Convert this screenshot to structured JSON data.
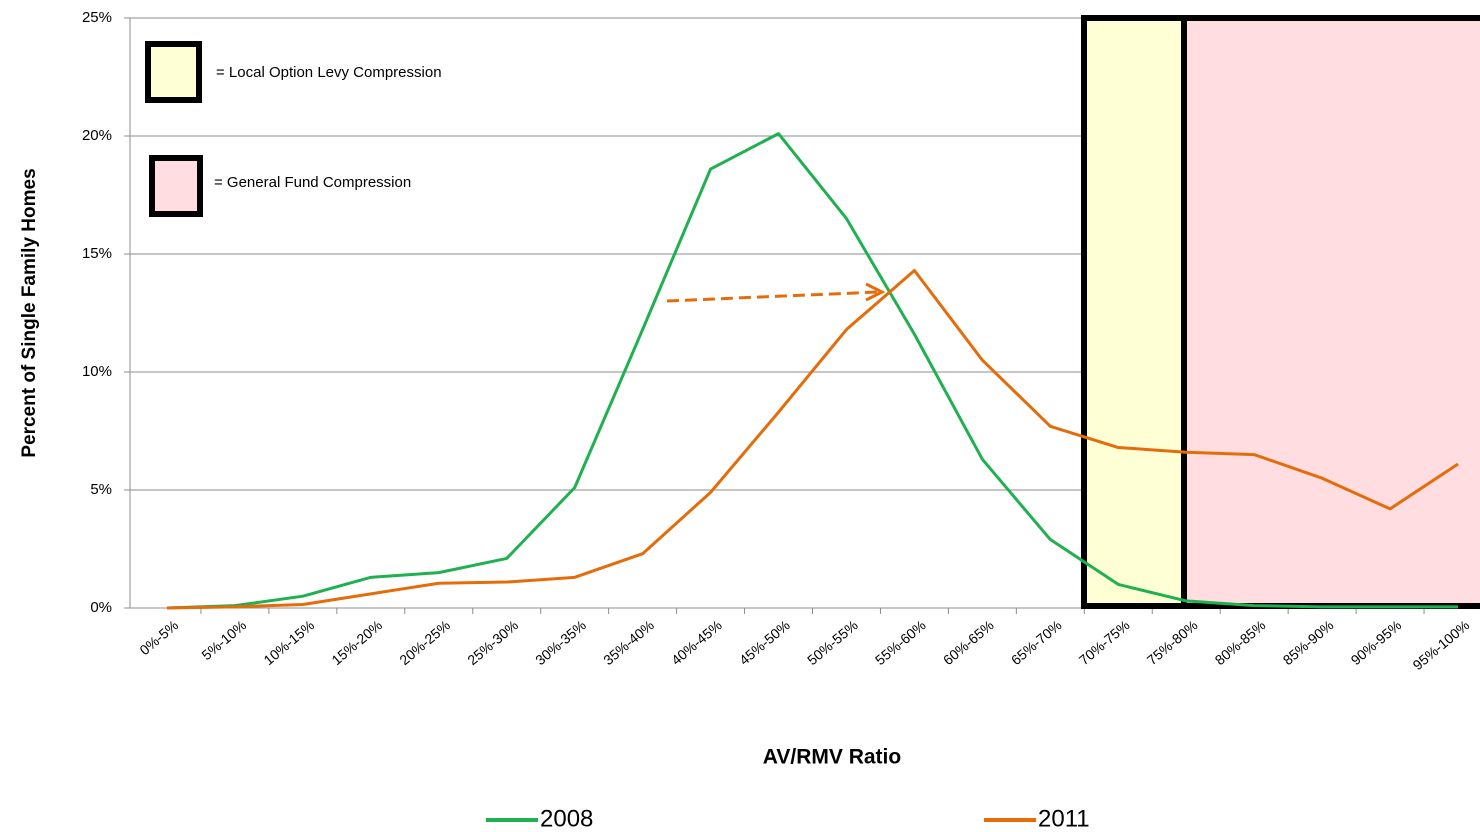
{
  "chart_data": {
    "type": "line",
    "y_label": "Percent of Single Family Homes",
    "x_label": "AV/RMV Ratio",
    "annotations": [
      "= Local Option Levy Compression",
      "= General Fund Compression"
    ],
    "categories": [
      "0%-5%",
      "5%-10%",
      "10%-15%",
      "15%-20%",
      "20%-25%",
      "25%-30%",
      "30%-35%",
      "35%-40%",
      "40%-45%",
      "45%-50%",
      "50%-55%",
      "55%-60%",
      "60%-65%",
      "65%-70%",
      "70%-75%",
      "75%-80%",
      "80%-85%",
      "85%-90%",
      "90%-95%",
      "95%-100%"
    ],
    "series": [
      {
        "name": "2008",
        "color": "#1fb050",
        "values": [
          0,
          0.1,
          0.5,
          1.3,
          1.5,
          2.1,
          5.1,
          11.8,
          18.6,
          20.1,
          16.5,
          11.6,
          6.3,
          2.9,
          1.0,
          0.3,
          0.1,
          0.05,
          0.05,
          0.05
        ]
      },
      {
        "name": "2011",
        "color": "#e46c0a",
        "values": [
          0,
          0.05,
          0.15,
          0.6,
          1.05,
          1.1,
          1.3,
          2.3,
          4.9,
          8.3,
          11.8,
          14.3,
          10.5,
          7.7,
          6.8,
          6.6,
          6.5,
          5.5,
          4.2,
          6.1
        ]
      }
    ],
    "ylim": [
      0,
      25
    ],
    "yticks": [
      {
        "value": 0,
        "label": "0%"
      },
      {
        "value": 5,
        "label": "5%"
      },
      {
        "value": 10,
        "label": "10%"
      },
      {
        "value": 15,
        "label": "15%"
      },
      {
        "value": 20,
        "label": "20%"
      },
      {
        "value": 25,
        "label": "25%"
      }
    ],
    "grid": true
  }
}
